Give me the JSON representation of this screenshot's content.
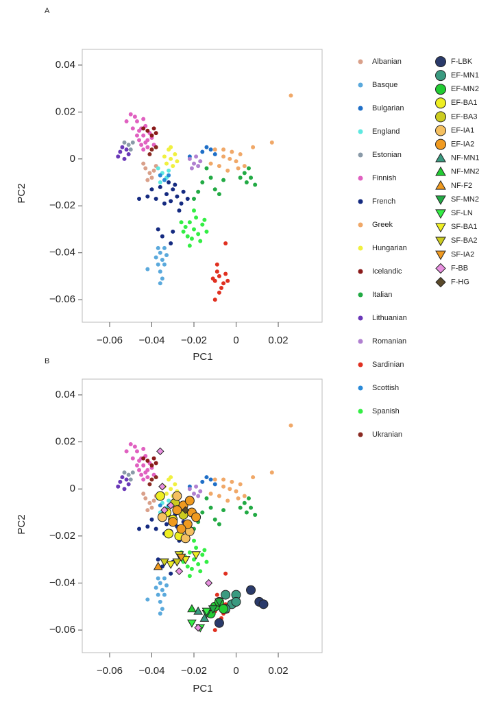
{
  "chart_data": [
    {
      "type": "scatter",
      "label": "A",
      "xlabel": "PC1",
      "ylabel": "PC2",
      "xlim": [
        -0.073,
        0.0408
      ],
      "ylim": [
        -0.0696,
        0.0467
      ],
      "xticks": [
        {
          "value": -0.06,
          "label": "−0.06"
        },
        {
          "value": -0.04,
          "label": "−0.04"
        },
        {
          "value": -0.02,
          "label": "−0.02"
        },
        0,
        0.02
      ],
      "yticks": [
        0.04,
        0.02,
        0,
        {
          "value": -0.02,
          "label": "−0.02"
        },
        {
          "value": -0.04,
          "label": "−0.04"
        },
        {
          "value": -0.06,
          "label": "−0.06"
        }
      ],
      "series": [
        {
          "name": "Albanian",
          "color": "#d9a08a",
          "x": [
            -0.043,
            -0.041,
            -0.044,
            -0.04,
            -0.039,
            -0.042,
            -0.038
          ],
          "y": [
            -0.004,
            -0.006,
            -0.002,
            -0.008,
            -0.005,
            -0.009,
            -0.003
          ]
        },
        {
          "name": "Basque",
          "color": "#5aa9dc",
          "x": [
            -0.036,
            -0.035,
            -0.037,
            -0.034,
            -0.036,
            -0.038,
            -0.035,
            -0.033,
            -0.042,
            -0.036,
            -0.034,
            -0.037
          ],
          "y": [
            -0.04,
            -0.043,
            -0.045,
            -0.038,
            -0.048,
            -0.042,
            -0.051,
            -0.041,
            -0.047,
            -0.053,
            -0.045,
            -0.038
          ]
        },
        {
          "name": "Bulgarian",
          "color": "#1f6fc7",
          "x": [
            -0.014,
            -0.016,
            -0.012,
            -0.022,
            -0.01
          ],
          "y": [
            0.005,
            0.003,
            0.004,
            0.001,
            0.002
          ]
        },
        {
          "name": "England",
          "color": "#5ee8e0",
          "x": [
            -0.035,
            -0.033,
            -0.036,
            -0.032,
            -0.037
          ],
          "y": [
            -0.006,
            -0.008,
            -0.01,
            -0.005,
            -0.004
          ]
        },
        {
          "name": "Estonian",
          "color": "#8a9aa8",
          "x": [
            -0.051,
            -0.053,
            -0.05,
            -0.049
          ],
          "y": [
            0.006,
            0.007,
            0.004,
            0.007
          ]
        },
        {
          "name": "Finnish",
          "color": "#e060c0",
          "x": [
            -0.044,
            -0.046,
            -0.042,
            -0.045,
            -0.043,
            -0.048,
            -0.05,
            -0.047,
            -0.041,
            -0.044,
            -0.046,
            -0.043,
            -0.04,
            -0.045,
            -0.052,
            -0.042,
            -0.047,
            -0.044,
            -0.039,
            -0.049
          ],
          "y": [
            0.01,
            0.012,
            0.008,
            0.006,
            0.014,
            0.018,
            0.019,
            0.016,
            0.011,
            0.004,
            0.008,
            0.007,
            0.009,
            0.013,
            0.016,
            0.005,
            0.01,
            0.017,
            0.006,
            0.013
          ]
        },
        {
          "name": "French",
          "color": "#142a80",
          "x": [
            -0.03,
            -0.028,
            -0.033,
            -0.036,
            -0.026,
            -0.031,
            -0.04,
            -0.038,
            -0.029,
            -0.025,
            -0.034,
            -0.042,
            -0.027,
            -0.032,
            -0.023,
            -0.035,
            -0.031,
            -0.037,
            -0.03,
            -0.046
          ],
          "y": [
            -0.013,
            -0.016,
            -0.015,
            -0.012,
            -0.019,
            -0.018,
            -0.013,
            -0.017,
            -0.011,
            -0.014,
            -0.019,
            -0.016,
            -0.022,
            -0.01,
            -0.017,
            -0.033,
            -0.036,
            -0.03,
            -0.031,
            -0.017
          ]
        },
        {
          "name": "Greek",
          "color": "#f0a868",
          "x": [
            -0.01,
            -0.006,
            -0.003,
            0.0,
            -0.008,
            -0.004,
            0.002,
            -0.012,
            0.004,
            -0.006,
            0.008,
            0.017,
            0.026,
            -0.002,
            0.001
          ],
          "y": [
            0.004,
            0.001,
            0.0,
            -0.001,
            -0.003,
            -0.005,
            0.002,
            -0.002,
            -0.003,
            0.004,
            0.005,
            0.007,
            0.027,
            0.003,
            -0.004
          ]
        },
        {
          "name": "Hungarian",
          "color": "#f0f040",
          "x": [
            -0.031,
            -0.033,
            -0.029,
            -0.032,
            -0.03,
            -0.034,
            -0.028,
            -0.031
          ],
          "y": [
            0.0,
            -0.002,
            0.002,
            0.004,
            -0.003,
            0.001,
            -0.001,
            0.005
          ]
        },
        {
          "name": "Icelandic",
          "color": "#8a1a1a",
          "x": [
            -0.042,
            -0.04,
            -0.044,
            -0.039,
            -0.038
          ],
          "y": [
            0.012,
            0.01,
            0.013,
            0.013,
            0.011
          ]
        },
        {
          "name": "Italian",
          "color": "#22aa44",
          "x": [
            -0.016,
            -0.012,
            -0.018,
            -0.01,
            -0.006,
            -0.014,
            0.002,
            0.005,
            0.006,
            0.009,
            0.004,
            -0.02,
            -0.008,
            0.007
          ],
          "y": [
            -0.01,
            -0.008,
            -0.014,
            -0.013,
            -0.009,
            -0.004,
            -0.008,
            -0.01,
            -0.004,
            -0.011,
            -0.006,
            -0.017,
            -0.015,
            -0.008
          ]
        },
        {
          "name": "Lithuanian",
          "color": "#6a38b8",
          "x": [
            -0.054,
            -0.055,
            -0.052,
            -0.056,
            -0.051,
            -0.053
          ],
          "y": [
            0.005,
            0.003,
            0.004,
            0.001,
            0.002,
            0.0
          ]
        },
        {
          "name": "Romanian",
          "color": "#b080d0",
          "x": [
            -0.02,
            -0.018,
            -0.022,
            -0.019,
            -0.017,
            -0.021
          ],
          "y": [
            -0.002,
            -0.003,
            0.0,
            0.001,
            -0.001,
            -0.004
          ]
        },
        {
          "name": "Sardinian",
          "color": "#e03020",
          "x": [
            -0.008,
            -0.01,
            -0.006,
            -0.009,
            -0.007,
            -0.011,
            -0.005,
            -0.008,
            -0.01,
            -0.004,
            -0.009,
            -0.005
          ],
          "y": [
            -0.05,
            -0.052,
            -0.053,
            -0.048,
            -0.055,
            -0.051,
            -0.049,
            -0.057,
            -0.06,
            -0.052,
            -0.045,
            -0.036
          ]
        },
        {
          "name": "Scottish",
          "color": "#2a8ad8",
          "x": [
            -0.036,
            -0.034,
            -0.032
          ],
          "y": [
            -0.007,
            -0.009,
            -0.007
          ]
        },
        {
          "name": "Spanish",
          "color": "#33ee44",
          "x": [
            -0.022,
            -0.02,
            -0.018,
            -0.024,
            -0.016,
            -0.021,
            -0.019,
            -0.014,
            -0.023,
            -0.017,
            -0.025,
            -0.02,
            -0.015,
            -0.022,
            -0.026
          ],
          "y": [
            -0.027,
            -0.03,
            -0.032,
            -0.029,
            -0.028,
            -0.034,
            -0.025,
            -0.031,
            -0.033,
            -0.035,
            -0.031,
            -0.022,
            -0.026,
            -0.037,
            -0.027
          ]
        },
        {
          "name": "Ukranian",
          "color": "#8a2a22",
          "x": [
            -0.04,
            -0.038,
            -0.041
          ],
          "y": [
            0.004,
            0.005,
            0.002
          ]
        }
      ]
    },
    {
      "type": "scatter",
      "label": "B",
      "xlabel": "PC1",
      "ylabel": "PC2",
      "xlim": [
        -0.073,
        0.0408
      ],
      "ylim": [
        -0.0696,
        0.0467
      ],
      "xticks": [
        {
          "value": -0.06,
          "label": "−0.06"
        },
        {
          "value": -0.04,
          "label": "−0.04"
        },
        {
          "value": -0.02,
          "label": "−0.02"
        },
        0,
        0.02
      ],
      "yticks": [
        0.04,
        0.02,
        0,
        {
          "value": -0.02,
          "label": "−0.02"
        },
        {
          "value": -0.04,
          "label": "−0.04"
        },
        {
          "value": -0.06,
          "label": "−0.06"
        }
      ],
      "series": [
        {
          "name": "F-LBK",
          "color": "#2a3a6a",
          "marker": "circle",
          "x": [
            0.007,
            0.011,
            0.013,
            -0.008
          ],
          "y": [
            -0.043,
            -0.048,
            -0.049,
            -0.057
          ]
        },
        {
          "name": "EF-MN1",
          "color": "#3a9a80",
          "marker": "circle",
          "x": [
            -0.005,
            0.0,
            -0.002,
            -0.005,
            0.0
          ],
          "y": [
            -0.045,
            -0.045,
            -0.049,
            -0.051,
            -0.048
          ]
        },
        {
          "name": "EF-MN2",
          "color": "#22cc33",
          "marker": "circle",
          "x": [
            -0.01,
            -0.012,
            -0.008,
            -0.006
          ],
          "y": [
            -0.05,
            -0.053,
            -0.048,
            -0.051
          ]
        },
        {
          "name": "EF-BA1",
          "color": "#eeee22",
          "marker": "circle",
          "x": [
            -0.036,
            -0.033,
            -0.03,
            -0.027,
            -0.032
          ],
          "y": [
            -0.003,
            -0.01,
            -0.013,
            -0.02,
            -0.019
          ]
        },
        {
          "name": "EF-BA3",
          "color": "#cccc20",
          "marker": "circle",
          "x": [
            -0.029,
            -0.025
          ],
          "y": [
            -0.006,
            -0.011
          ]
        },
        {
          "name": "EF-IA1",
          "color": "#f5c060",
          "marker": "circle",
          "x": [
            -0.028,
            -0.024,
            -0.035,
            -0.022
          ],
          "y": [
            -0.003,
            -0.021,
            -0.012,
            -0.018
          ]
        },
        {
          "name": "EF-IA2",
          "color": "#f09a20",
          "marker": "circle",
          "x": [
            -0.025,
            -0.021,
            -0.028,
            -0.019,
            -0.023,
            -0.03,
            -0.026,
            -0.022
          ],
          "y": [
            -0.007,
            -0.01,
            -0.009,
            -0.012,
            -0.015,
            -0.014,
            -0.017,
            -0.005
          ]
        },
        {
          "name": "NF-MN1",
          "color": "#3a9a80",
          "marker": "triangle-up",
          "x": [
            -0.018,
            -0.015
          ],
          "y": [
            -0.052,
            -0.055
          ]
        },
        {
          "name": "NF-MN2",
          "color": "#22cc33",
          "marker": "triangle-up",
          "x": [
            -0.021
          ],
          "y": [
            -0.051
          ]
        },
        {
          "name": "NF-F2",
          "color": "#f09a20",
          "marker": "triangle-up",
          "x": [
            -0.037
          ],
          "y": [
            -0.033
          ]
        },
        {
          "name": "SF-MN2",
          "color": "#22aa44",
          "marker": "triangle-down",
          "x": [
            -0.014,
            -0.011,
            -0.008
          ],
          "y": [
            -0.053,
            -0.051,
            -0.048
          ]
        },
        {
          "name": "SF-LN",
          "color": "#33ee44",
          "marker": "triangle-down",
          "x": [
            -0.021,
            -0.017,
            -0.014
          ],
          "y": [
            -0.057,
            -0.059,
            -0.052
          ]
        },
        {
          "name": "SF-BA1",
          "color": "#eeee22",
          "marker": "triangle-down",
          "x": [
            -0.027,
            -0.024,
            -0.031,
            -0.019
          ],
          "y": [
            -0.028,
            -0.03,
            -0.032,
            -0.028
          ]
        },
        {
          "name": "SF-BA2",
          "color": "#cccc20",
          "marker": "triangle-down",
          "x": [
            -0.028,
            -0.034
          ],
          "y": [
            -0.031,
            -0.031
          ]
        },
        {
          "name": "SF-IA2",
          "color": "#f09a20",
          "marker": "triangle-down",
          "x": [
            -0.026
          ],
          "y": [
            -0.029
          ]
        },
        {
          "name": "F-BB",
          "color": "#e890e0",
          "marker": "diamond",
          "x": [
            -0.036,
            -0.034,
            -0.031,
            -0.013,
            -0.018,
            -0.027,
            -0.035
          ],
          "y": [
            0.016,
            -0.009,
            -0.007,
            -0.04,
            -0.059,
            -0.035,
            0.001
          ]
        },
        {
          "name": "F-HG",
          "color": "#5a4a2a",
          "marker": "diamond",
          "x": [
            -0.024
          ],
          "y": [
            -0.009
          ]
        }
      ]
    }
  ]
}
